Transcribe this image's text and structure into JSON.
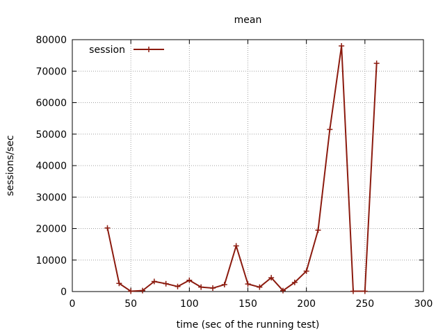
{
  "chart_data": {
    "type": "line",
    "title": "mean",
    "xlabel": "time (sec of the running test)",
    "ylabel": "sessions/sec",
    "xlim": [
      0,
      300
    ],
    "ylim": [
      0,
      80000
    ],
    "xticks": [
      0,
      50,
      100,
      150,
      200,
      250,
      300
    ],
    "yticks": [
      0,
      10000,
      20000,
      30000,
      40000,
      50000,
      60000,
      70000,
      80000
    ],
    "grid": true,
    "legend_position": "top-left",
    "series": [
      {
        "name": "session",
        "color": "#8b1a0e",
        "marker": "plus",
        "x": [
          30,
          40,
          50,
          60,
          70,
          80,
          90,
          100,
          110,
          120,
          130,
          140,
          150,
          160,
          170,
          180,
          190,
          200,
          210,
          220,
          230,
          240,
          250,
          260
        ],
        "y": [
          20200,
          2600,
          100,
          300,
          3200,
          2500,
          1600,
          3600,
          1400,
          1100,
          2200,
          14500,
          2400,
          1400,
          4400,
          300,
          2900,
          6500,
          19500,
          51500,
          78000,
          100,
          100,
          72500
        ]
      }
    ]
  }
}
